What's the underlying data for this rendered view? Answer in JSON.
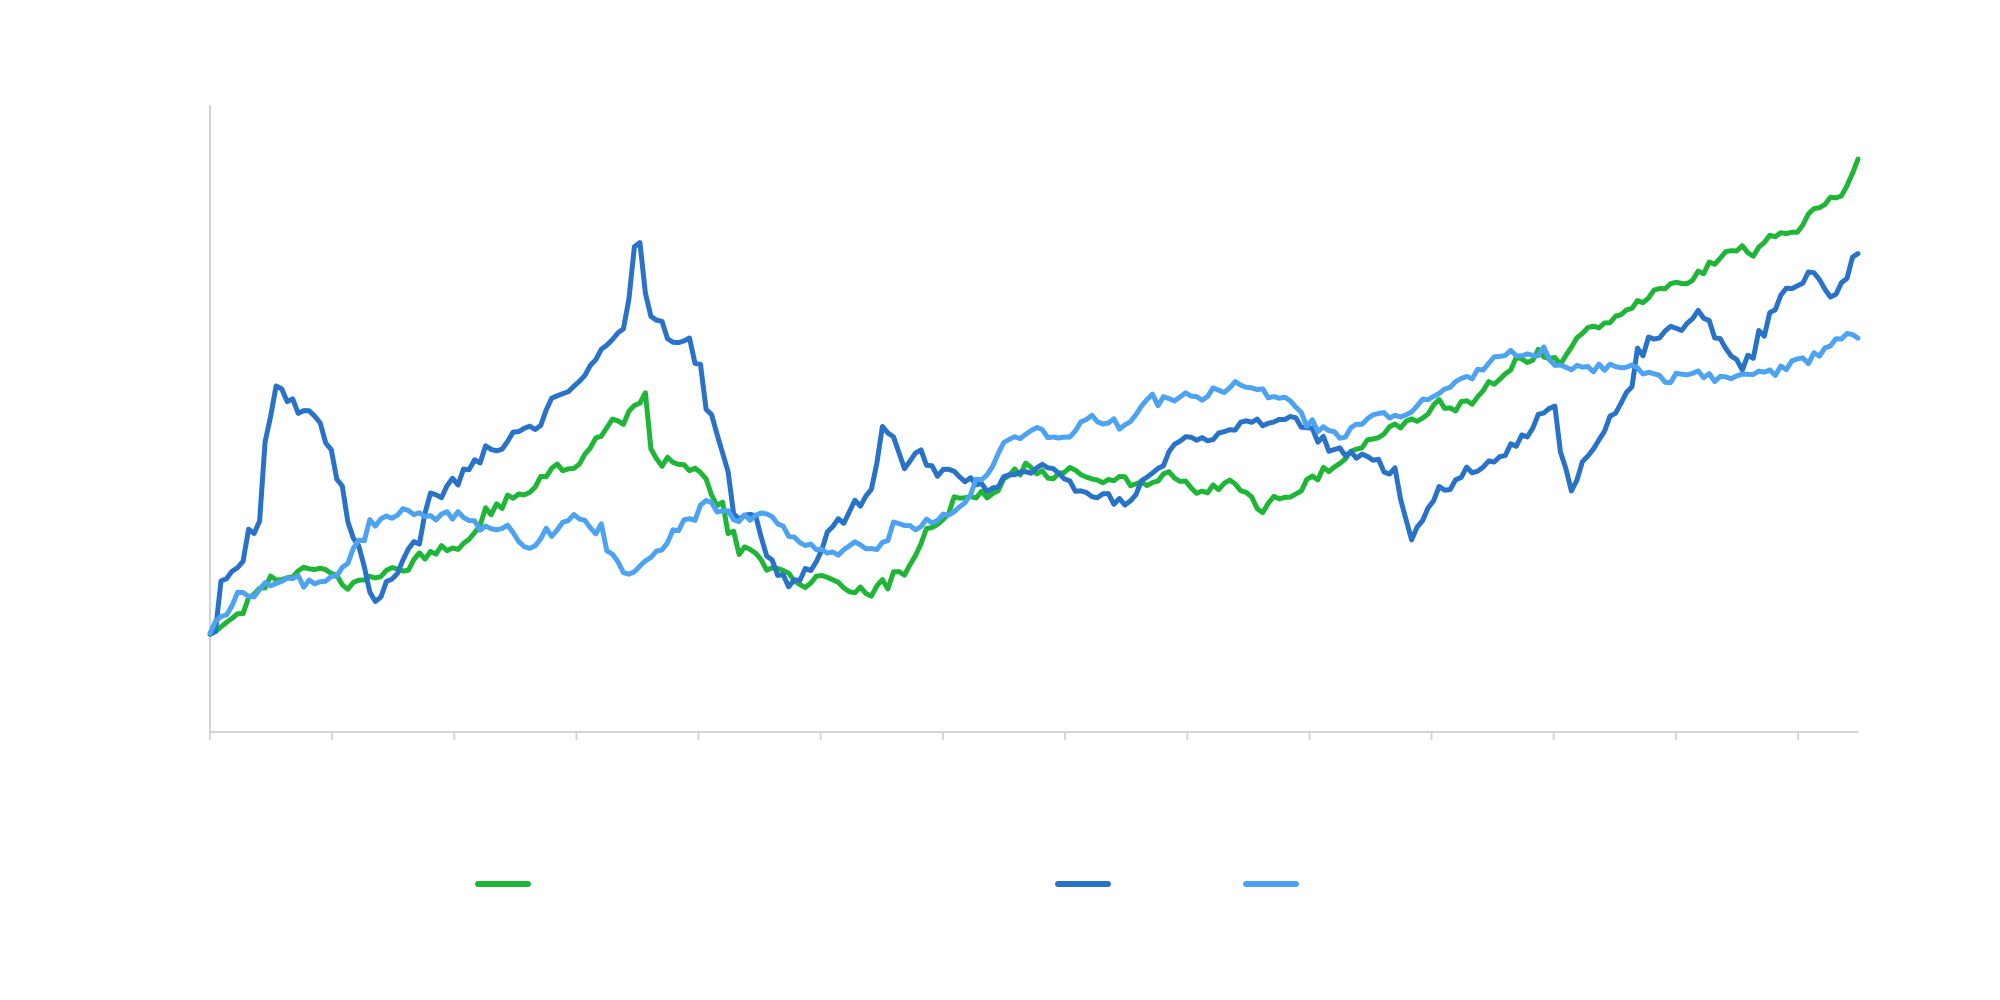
{
  "chart_data": {
    "type": "line",
    "title": "",
    "xlabel": "",
    "ylabel": "",
    "x_count": 300,
    "ylim": [
      0,
      100
    ],
    "grid": false,
    "legend_position": "bottom",
    "x_tick_count": 14,
    "series": [
      {
        "color": "#1fb638",
        "anchors": [
          [
            0,
            16
          ],
          [
            5,
            19
          ],
          [
            10,
            24
          ],
          [
            14,
            26
          ],
          [
            20,
            26
          ],
          [
            25,
            23
          ],
          [
            30,
            25
          ],
          [
            35,
            26
          ],
          [
            40,
            28
          ],
          [
            45,
            30
          ],
          [
            50,
            34
          ],
          [
            55,
            37
          ],
          [
            60,
            40
          ],
          [
            65,
            42
          ],
          [
            70,
            47
          ],
          [
            75,
            49
          ],
          [
            78,
            54
          ],
          [
            80,
            45
          ],
          [
            85,
            42
          ],
          [
            90,
            41
          ],
          [
            95,
            30
          ],
          [
            100,
            26
          ],
          [
            105,
            23
          ],
          [
            110,
            25
          ],
          [
            115,
            22
          ],
          [
            120,
            21
          ],
          [
            125,
            25
          ],
          [
            130,
            32
          ],
          [
            135,
            36
          ],
          [
            140,
            37
          ],
          [
            145,
            40
          ],
          [
            150,
            41
          ],
          [
            155,
            41
          ],
          [
            160,
            40
          ],
          [
            165,
            40
          ],
          [
            170,
            39
          ],
          [
            175,
            40
          ],
          [
            180,
            38
          ],
          [
            185,
            39
          ],
          [
            190,
            36
          ],
          [
            195,
            37
          ],
          [
            200,
            40
          ],
          [
            205,
            43
          ],
          [
            210,
            46
          ],
          [
            215,
            48
          ],
          [
            220,
            50
          ],
          [
            225,
            52
          ],
          [
            230,
            54
          ],
          [
            235,
            57
          ],
          [
            240,
            59
          ],
          [
            245,
            60
          ],
          [
            250,
            63
          ],
          [
            255,
            67
          ],
          [
            260,
            70
          ],
          [
            265,
            70
          ],
          [
            270,
            73
          ],
          [
            275,
            76
          ],
          [
            280,
            75
          ],
          [
            285,
            78
          ],
          [
            290,
            82
          ],
          [
            295,
            85
          ],
          [
            299,
            90
          ]
        ]
      },
      {
        "color": "#2872c8",
        "anchors": [
          [
            0,
            16
          ],
          [
            2,
            25
          ],
          [
            5,
            27
          ],
          [
            8,
            33
          ],
          [
            9,
            42
          ],
          [
            12,
            54
          ],
          [
            15,
            52
          ],
          [
            18,
            50
          ],
          [
            20,
            47
          ],
          [
            22,
            42
          ],
          [
            25,
            32
          ],
          [
            27,
            26
          ],
          [
            30,
            21
          ],
          [
            32,
            24
          ],
          [
            35,
            28
          ],
          [
            38,
            30
          ],
          [
            40,
            36
          ],
          [
            45,
            40
          ],
          [
            50,
            44
          ],
          [
            55,
            48
          ],
          [
            60,
            50
          ],
          [
            65,
            55
          ],
          [
            70,
            60
          ],
          [
            74,
            64
          ],
          [
            77,
            78
          ],
          [
            80,
            66
          ],
          [
            83,
            62
          ],
          [
            87,
            62
          ],
          [
            90,
            50
          ],
          [
            95,
            35
          ],
          [
            98,
            34
          ],
          [
            100,
            30
          ],
          [
            103,
            25
          ],
          [
            106,
            24
          ],
          [
            109,
            26
          ],
          [
            112,
            31
          ],
          [
            115,
            33
          ],
          [
            118,
            37
          ],
          [
            120,
            39
          ],
          [
            122,
            49
          ],
          [
            125,
            42
          ],
          [
            128,
            45
          ],
          [
            132,
            42
          ],
          [
            137,
            40
          ],
          [
            140,
            38
          ],
          [
            144,
            40
          ],
          [
            148,
            42
          ],
          [
            152,
            41
          ],
          [
            155,
            39
          ],
          [
            160,
            37
          ],
          [
            165,
            36
          ],
          [
            170,
            40
          ],
          [
            175,
            45
          ],
          [
            180,
            47
          ],
          [
            185,
            48
          ],
          [
            190,
            49
          ],
          [
            195,
            50
          ],
          [
            200,
            48
          ],
          [
            205,
            45
          ],
          [
            210,
            44
          ],
          [
            215,
            42
          ],
          [
            218,
            32
          ],
          [
            222,
            38
          ],
          [
            226,
            40
          ],
          [
            230,
            42
          ],
          [
            235,
            44
          ],
          [
            240,
            48
          ],
          [
            243,
            52
          ],
          [
            247,
            40
          ],
          [
            252,
            48
          ],
          [
            256,
            52
          ],
          [
            260,
            62
          ],
          [
            265,
            64
          ],
          [
            270,
            66
          ],
          [
            275,
            60
          ],
          [
            278,
            57
          ],
          [
            281,
            62
          ],
          [
            285,
            68
          ],
          [
            290,
            72
          ],
          [
            295,
            70
          ],
          [
            299,
            78
          ]
        ]
      },
      {
        "color": "#4da3f2",
        "anchors": [
          [
            0,
            16
          ],
          [
            5,
            22
          ],
          [
            10,
            23
          ],
          [
            15,
            25
          ],
          [
            20,
            24
          ],
          [
            25,
            28
          ],
          [
            30,
            33
          ],
          [
            35,
            35
          ],
          [
            40,
            33
          ],
          [
            45,
            34
          ],
          [
            50,
            32
          ],
          [
            55,
            31
          ],
          [
            60,
            30
          ],
          [
            65,
            34
          ],
          [
            70,
            33
          ],
          [
            75,
            25
          ],
          [
            80,
            28
          ],
          [
            85,
            32
          ],
          [
            90,
            36
          ],
          [
            95,
            33
          ],
          [
            100,
            34
          ],
          [
            105,
            30
          ],
          [
            110,
            28
          ],
          [
            115,
            29
          ],
          [
            120,
            28
          ],
          [
            125,
            33
          ],
          [
            130,
            34
          ],
          [
            135,
            36
          ],
          [
            140,
            41
          ],
          [
            145,
            46
          ],
          [
            150,
            48
          ],
          [
            155,
            48
          ],
          [
            160,
            49
          ],
          [
            165,
            48
          ],
          [
            170,
            51
          ],
          [
            175,
            53
          ],
          [
            180,
            53
          ],
          [
            185,
            55
          ],
          [
            190,
            54
          ],
          [
            195,
            52
          ],
          [
            200,
            49
          ],
          [
            205,
            48
          ],
          [
            210,
            49
          ],
          [
            215,
            50
          ],
          [
            220,
            53
          ],
          [
            225,
            56
          ],
          [
            230,
            58
          ],
          [
            235,
            60
          ],
          [
            240,
            59
          ],
          [
            245,
            58
          ],
          [
            250,
            58
          ],
          [
            255,
            58
          ],
          [
            260,
            57
          ],
          [
            265,
            56
          ],
          [
            270,
            57
          ],
          [
            275,
            56
          ],
          [
            280,
            57
          ],
          [
            285,
            59
          ],
          [
            290,
            60
          ],
          [
            295,
            62
          ],
          [
            299,
            62
          ]
        ]
      }
    ]
  }
}
